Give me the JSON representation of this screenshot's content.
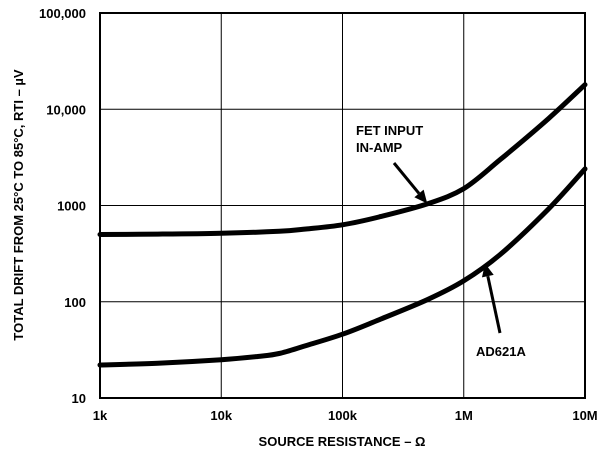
{
  "chart_data": {
    "type": "line",
    "xscale": "log",
    "yscale": "log",
    "xlim": [
      1000,
      10000000
    ],
    "ylim": [
      10,
      100000
    ],
    "xlabel": "SOURCE RESISTANCE – Ω",
    "ylabel": "TOTAL DRIFT FROM 25°C TO 85°C, RTI – µV",
    "x_ticks": [
      1000,
      10000,
      100000,
      1000000,
      10000000
    ],
    "x_tick_labels": [
      "1k",
      "10k",
      "100k",
      "1M",
      "10M"
    ],
    "y_ticks": [
      10,
      100,
      1000,
      10000,
      100000
    ],
    "y_tick_labels": [
      "10",
      "100",
      "1000",
      "10,000",
      "100,000"
    ],
    "grid": true,
    "series": [
      {
        "name": "FET INPUT IN-AMP",
        "x": [
          1000,
          3000,
          10000,
          30000,
          50000,
          100000,
          200000,
          500000,
          1000000,
          2000000,
          5000000,
          10000000
        ],
        "values": [
          500,
          505,
          515,
          540,
          570,
          630,
          760,
          1040,
          1500,
          3000,
          8000,
          18000
        ]
      },
      {
        "name": "AD621A",
        "x": [
          1000,
          3000,
          10000,
          20000,
          30000,
          50000,
          100000,
          200000,
          500000,
          1000000,
          2000000,
          5000000,
          10000000
        ],
        "values": [
          22,
          23,
          25,
          27,
          29,
          35,
          46,
          65,
          105,
          165,
          310,
          920,
          2400
        ]
      }
    ],
    "annotations": [
      {
        "lines": [
          "FET INPUT",
          "IN-AMP"
        ],
        "points_to": {
          "x": 500000,
          "y": 1050
        }
      },
      {
        "lines": [
          "AD621A"
        ],
        "points_to": {
          "x": 1500000,
          "y": 250
        }
      }
    ]
  },
  "colors": {
    "curve": "#000000",
    "grid": "#000000",
    "background": "#ffffff"
  }
}
